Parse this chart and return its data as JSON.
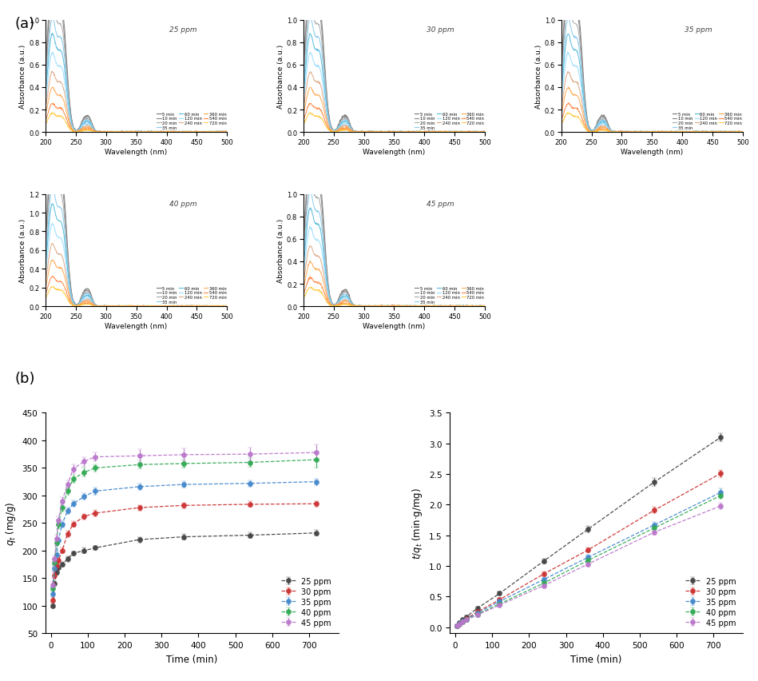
{
  "uv_panels": [
    {
      "label": "25 ppm",
      "ylim": [
        0,
        1.0
      ],
      "yticks": [
        0.0,
        0.2,
        0.4,
        0.6,
        0.8,
        1.0
      ],
      "peak": 1.0
    },
    {
      "label": "30 ppm",
      "ylim": [
        0,
        1.0
      ],
      "yticks": [
        0.0,
        0.2,
        0.4,
        0.6,
        0.8,
        1.0
      ],
      "peak": 1.0
    },
    {
      "label": "35 ppm",
      "ylim": [
        0,
        1.0
      ],
      "yticks": [
        0.0,
        0.2,
        0.4,
        0.6,
        0.8,
        1.0
      ],
      "peak": 1.0
    },
    {
      "label": "40 ppm",
      "ylim": [
        0,
        1.2
      ],
      "yticks": [
        0.0,
        0.2,
        0.4,
        0.6,
        0.8,
        1.0,
        1.2
      ],
      "peak": 1.25
    },
    {
      "label": "45 ppm",
      "ylim": [
        0,
        1.0
      ],
      "yticks": [
        0.0,
        0.2,
        0.4,
        0.6,
        0.8,
        1.0
      ],
      "peak": 1.0
    }
  ],
  "uv_time_labels": [
    "5 min",
    "10 min",
    "20 min",
    "35 min",
    "60 min",
    "120 min",
    "240 min",
    "360 min",
    "540 min",
    "720 min"
  ],
  "uv_time_colors": [
    "#777777",
    "#888888",
    "#aaaaaa",
    "#88ccee",
    "#55bbdd",
    "#99ddff",
    "#ddaa88",
    "#ffaa55",
    "#ff8844",
    "#ffcc44"
  ],
  "uv_time_decay": [
    1.0,
    0.92,
    0.82,
    0.72,
    0.62,
    0.5,
    0.38,
    0.28,
    0.18,
    0.12
  ],
  "qt_time": [
    5,
    10,
    15,
    20,
    30,
    45,
    60,
    90,
    120,
    240,
    360,
    540,
    720
  ],
  "qt_data": {
    "25ppm": [
      100,
      140,
      160,
      170,
      175,
      185,
      195,
      200,
      205,
      220,
      225,
      228,
      232
    ],
    "30ppm": [
      110,
      155,
      172,
      182,
      200,
      230,
      248,
      262,
      268,
      278,
      282,
      284,
      285
    ],
    "35ppm": [
      122,
      168,
      192,
      218,
      248,
      272,
      285,
      298,
      308,
      316,
      320,
      322,
      325
    ],
    "40ppm": [
      132,
      178,
      215,
      248,
      278,
      308,
      330,
      342,
      350,
      356,
      358,
      360,
      365
    ],
    "45ppm": [
      138,
      185,
      222,
      255,
      290,
      320,
      348,
      362,
      370,
      372,
      374,
      375,
      378
    ]
  },
  "qt_errors": {
    "25ppm": [
      3,
      4,
      4,
      5,
      4,
      5,
      4,
      5,
      4,
      5,
      5,
      5,
      5
    ],
    "30ppm": [
      4,
      5,
      5,
      5,
      5,
      6,
      5,
      5,
      6,
      5,
      5,
      5,
      5
    ],
    "35ppm": [
      5,
      5,
      6,
      6,
      6,
      6,
      6,
      6,
      6,
      6,
      6,
      6,
      6
    ],
    "40ppm": [
      5,
      6,
      6,
      7,
      7,
      7,
      7,
      8,
      7,
      7,
      7,
      8,
      15
    ],
    "45ppm": [
      5,
      6,
      7,
      7,
      7,
      8,
      8,
      8,
      8,
      12,
      12,
      12,
      15
    ]
  },
  "tqt_time": [
    5,
    10,
    20,
    30,
    60,
    120,
    240,
    360,
    540,
    720
  ],
  "tqt_data": {
    "25ppm": [
      0.02,
      0.07,
      0.12,
      0.17,
      0.31,
      0.55,
      1.08,
      1.6,
      2.37,
      3.1
    ],
    "30ppm": [
      0.02,
      0.06,
      0.1,
      0.14,
      0.25,
      0.45,
      0.87,
      1.26,
      1.91,
      2.51
    ],
    "35ppm": [
      0.02,
      0.06,
      0.1,
      0.13,
      0.23,
      0.42,
      0.78,
      1.14,
      1.67,
      2.2
    ],
    "40ppm": [
      0.02,
      0.05,
      0.09,
      0.12,
      0.21,
      0.38,
      0.72,
      1.09,
      1.62,
      2.15
    ],
    "45ppm": [
      0.02,
      0.05,
      0.09,
      0.12,
      0.2,
      0.36,
      0.68,
      1.03,
      1.55,
      1.98
    ]
  },
  "tqt_errors": {
    "25ppm": [
      0.01,
      0.01,
      0.02,
      0.02,
      0.02,
      0.03,
      0.04,
      0.05,
      0.06,
      0.07
    ],
    "30ppm": [
      0.01,
      0.01,
      0.01,
      0.02,
      0.02,
      0.03,
      0.04,
      0.04,
      0.05,
      0.06
    ],
    "35ppm": [
      0.01,
      0.01,
      0.01,
      0.02,
      0.02,
      0.02,
      0.03,
      0.04,
      0.05,
      0.06
    ],
    "40ppm": [
      0.01,
      0.01,
      0.01,
      0.01,
      0.02,
      0.02,
      0.03,
      0.04,
      0.05,
      0.06
    ],
    "45ppm": [
      0.01,
      0.01,
      0.01,
      0.01,
      0.02,
      0.02,
      0.03,
      0.03,
      0.04,
      0.05
    ]
  },
  "series_colors": {
    "25ppm": "#444444",
    "30ppm": "#cc3333",
    "35ppm": "#4488cc",
    "40ppm": "#33aa55",
    "45ppm": "#bb77cc"
  },
  "series_labels": {
    "25ppm": "25 ppm",
    "30ppm": "30 ppm",
    "35ppm": "35 ppm",
    "40ppm": "40 ppm",
    "45ppm": "45 ppm"
  }
}
